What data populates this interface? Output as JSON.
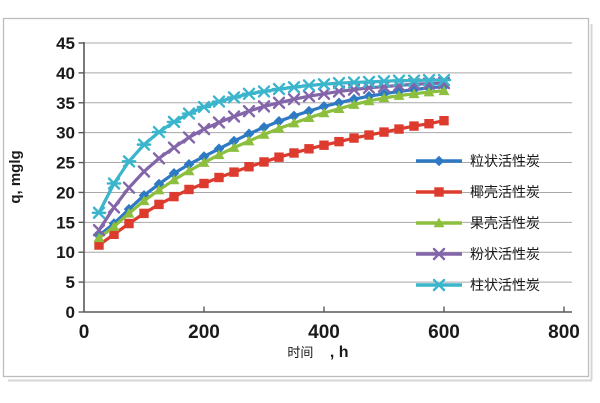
{
  "chart_data": {
    "type": "line",
    "title": "",
    "ylabel": "q, mglg",
    "xlabel": "时间 , h",
    "xlabel_prefix": "时间",
    "xlabel_suffix": ", h",
    "xlim": [
      0,
      800
    ],
    "ylim": [
      0,
      45
    ],
    "xticks": [
      0,
      200,
      400,
      600,
      800
    ],
    "yticks": [
      0,
      5,
      10,
      15,
      20,
      25,
      30,
      35,
      40,
      45
    ],
    "grid": true,
    "legend_position": "inside-right",
    "x": [
      25,
      50,
      75,
      100,
      125,
      150,
      175,
      200,
      225,
      250,
      275,
      300,
      325,
      350,
      375,
      400,
      425,
      450,
      475,
      500,
      525,
      550,
      575,
      600
    ],
    "series": [
      {
        "name": "粒状活性炭",
        "color": "#2e79c3",
        "marker": "diamond",
        "values": [
          12.8,
          14.8,
          17.2,
          19.5,
          21.4,
          23.2,
          24.7,
          26.0,
          27.3,
          28.6,
          29.8,
          30.9,
          31.9,
          32.8,
          33.6,
          34.4,
          35.0,
          35.6,
          36.1,
          36.5,
          36.9,
          37.2,
          37.5,
          37.7
        ]
      },
      {
        "name": "椰壳活性炭",
        "color": "#dd3b2e",
        "marker": "square",
        "values": [
          11.2,
          13.0,
          14.8,
          16.5,
          18.0,
          19.3,
          20.5,
          21.5,
          22.5,
          23.4,
          24.3,
          25.1,
          25.9,
          26.6,
          27.3,
          27.9,
          28.5,
          29.1,
          29.6,
          30.1,
          30.6,
          31.1,
          31.5,
          32.0
        ]
      },
      {
        "name": "果壳活性炭",
        "color": "#8dbf3e",
        "marker": "triangle",
        "values": [
          12.4,
          14.3,
          16.5,
          18.6,
          20.4,
          22.1,
          23.6,
          25.0,
          26.3,
          27.5,
          28.6,
          29.7,
          30.7,
          31.6,
          32.5,
          33.3,
          34.0,
          34.7,
          35.3,
          35.8,
          36.2,
          36.5,
          36.8,
          37.0
        ]
      },
      {
        "name": "粉状活性炭",
        "color": "#8365a9",
        "marker": "x",
        "values": [
          13.7,
          17.5,
          20.8,
          23.5,
          25.7,
          27.5,
          29.2,
          30.6,
          31.7,
          32.7,
          33.6,
          34.4,
          35.0,
          35.6,
          36.1,
          36.5,
          36.9,
          37.2,
          37.5,
          37.7,
          37.9,
          38.1,
          38.2,
          38.3
        ]
      },
      {
        "name": "柱状活性炭",
        "color": "#3ab5cc",
        "marker": "asterisk",
        "values": [
          16.6,
          21.5,
          25.2,
          28.0,
          30.1,
          31.8,
          33.2,
          34.3,
          35.2,
          35.9,
          36.5,
          36.9,
          37.3,
          37.6,
          37.9,
          38.1,
          38.3,
          38.4,
          38.5,
          38.6,
          38.7,
          38.7,
          38.8,
          38.8
        ]
      }
    ]
  },
  "style": {
    "grid_color": "#a8a8a8",
    "axis_color": "#595959",
    "text_color": "#1a1a1a",
    "frame_border_color": "#bdbdbd",
    "background": "#ffffff"
  }
}
